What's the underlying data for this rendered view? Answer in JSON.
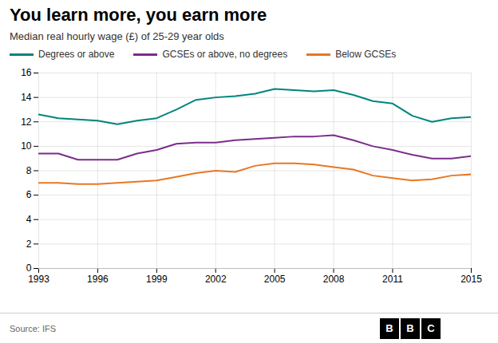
{
  "chart_data": {
    "type": "line",
    "title": "You learn more, you earn more",
    "subtitle": "Median real hourly wage (£) of 25-29 year olds",
    "source": "Source: IFS",
    "logo": "BBC",
    "x": [
      1993,
      1994,
      1995,
      1996,
      1997,
      1998,
      1999,
      2000,
      2001,
      2002,
      2003,
      2004,
      2005,
      2006,
      2007,
      2008,
      2009,
      2010,
      2011,
      2012,
      2013,
      2014,
      2015
    ],
    "series": [
      {
        "name": "Degrees or above",
        "color": "#00857d",
        "values": [
          12.6,
          12.3,
          12.2,
          12.1,
          11.8,
          12.1,
          12.3,
          13.0,
          13.8,
          14.0,
          14.1,
          14.3,
          14.7,
          14.6,
          14.5,
          14.6,
          14.2,
          13.7,
          13.5,
          12.5,
          12.0,
          12.3,
          12.4
        ]
      },
      {
        "name": "GCSEs or above, no degrees",
        "color": "#7b2d8b",
        "values": [
          9.4,
          9.4,
          8.9,
          8.9,
          8.9,
          9.4,
          9.7,
          10.2,
          10.3,
          10.3,
          10.5,
          10.6,
          10.7,
          10.8,
          10.8,
          10.9,
          10.5,
          10.0,
          9.7,
          9.3,
          9.0,
          9.0,
          9.2
        ]
      },
      {
        "name": "Below GCSEs",
        "color": "#e87722",
        "values": [
          7.0,
          7.0,
          6.9,
          6.9,
          7.0,
          7.1,
          7.2,
          7.5,
          7.8,
          8.0,
          7.9,
          8.4,
          8.6,
          8.6,
          8.5,
          8.3,
          8.1,
          7.6,
          7.4,
          7.2,
          7.3,
          7.6,
          7.7
        ]
      }
    ],
    "xlim": [
      1993,
      2015
    ],
    "xticks": [
      1993,
      1996,
      1999,
      2002,
      2005,
      2008,
      2011,
      2015
    ],
    "ylim": [
      0,
      16
    ],
    "yticks": [
      0,
      2,
      4,
      6,
      8,
      10,
      12,
      14,
      16
    ],
    "grid": true,
    "legend": "top"
  }
}
